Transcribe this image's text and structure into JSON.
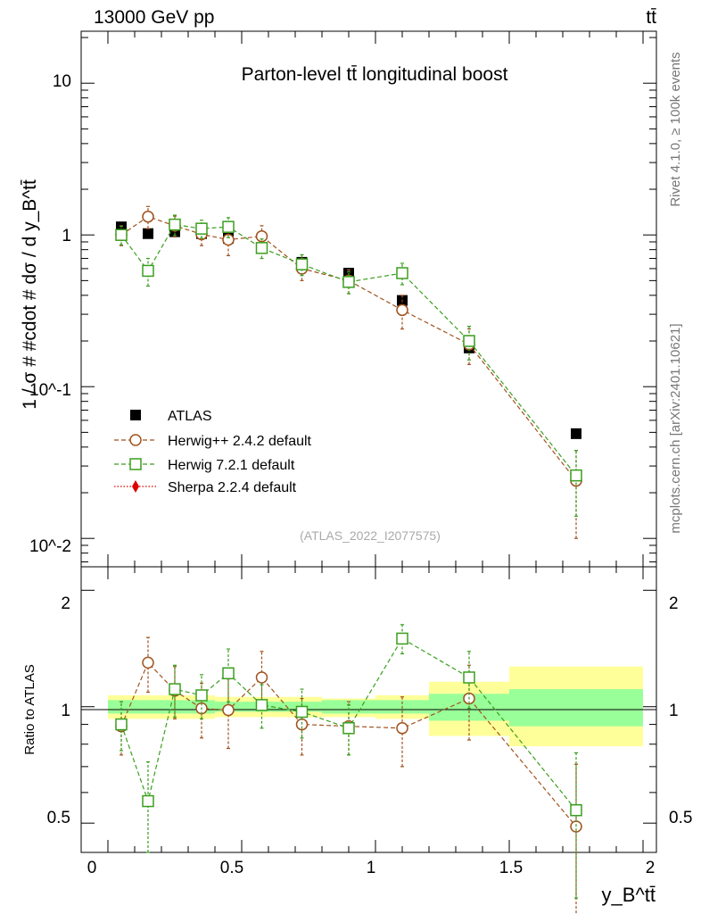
{
  "header": {
    "left": "13000 GeV pp",
    "right": "tt̄"
  },
  "side": {
    "rivet": "Rivet 4.1.0, ≥ 100k events",
    "mcplots": "mcplots.cern.ch [arXiv:2401.10621]"
  },
  "chart_data": [
    {
      "type": "scatter",
      "title": "Parton-level tt̄ longitudinal boost",
      "watermark": "(ATLAS_2022_I2077575)",
      "ylabel": "1 / σ # #cdot # dσ / d y_B^tt̄",
      "yscale": "log",
      "ylim": [
        0.0065,
        22
      ],
      "xlim": [
        -0.1,
        2.05
      ],
      "ytick_labels": [
        "10^-2",
        "10^-1",
        "1",
        "10"
      ],
      "legend_position": "lower-left",
      "series": [
        {
          "name": "ATLAS",
          "color": "#000000",
          "marker": "square-filled",
          "x": [
            0.05,
            0.15,
            0.25,
            0.35,
            0.45,
            0.575,
            0.725,
            0.9,
            1.1,
            1.35,
            1.75
          ],
          "y": [
            1.13,
            1.02,
            1.05,
            1.02,
            0.95,
            0.82,
            0.66,
            0.56,
            0.37,
            0.18,
            0.049
          ]
        },
        {
          "name": "Herwig++ 2.4.2 default",
          "color": "#a0521e",
          "marker": "circle-open",
          "x": [
            0.05,
            0.15,
            0.25,
            0.35,
            0.45,
            0.575,
            0.725,
            0.9,
            1.1,
            1.35,
            1.75
          ],
          "y": [
            1.0,
            1.32,
            1.15,
            1.01,
            0.93,
            0.98,
            0.6,
            0.5,
            0.32,
            0.19,
            0.024
          ],
          "err": [
            0.15,
            0.22,
            0.18,
            0.16,
            0.2,
            0.17,
            0.1,
            0.09,
            0.08,
            0.05,
            0.014
          ]
        },
        {
          "name": "Herwig 7.2.1 default",
          "color": "#3a9e1e",
          "marker": "square-open",
          "x": [
            0.05,
            0.15,
            0.25,
            0.35,
            0.45,
            0.575,
            0.725,
            0.9,
            1.1,
            1.35,
            1.75
          ],
          "y": [
            1.0,
            0.58,
            1.17,
            1.1,
            1.13,
            0.82,
            0.64,
            0.49,
            0.56,
            0.2,
            0.026
          ],
          "err": [
            0.14,
            0.12,
            0.18,
            0.15,
            0.17,
            0.12,
            0.1,
            0.08,
            0.09,
            0.05,
            0.012
          ]
        },
        {
          "name": "Sherpa 2.2.4 default",
          "color": "#dd0000",
          "marker": "diamond-filled",
          "x": [],
          "y": []
        }
      ]
    },
    {
      "type": "scatter",
      "ylabel": "Ratio to ATLAS",
      "xlabel": "y_B^tt̄",
      "ylim": [
        0.42,
        2.3
      ],
      "xlim": [
        -0.1,
        2.05
      ],
      "xtick_labels": [
        "0",
        "0.5",
        "1",
        "1.5",
        "2"
      ],
      "ytick_labels": [
        "0.5",
        "1",
        "2"
      ],
      "bands": {
        "edges": [
          0,
          0.1,
          0.2,
          0.3,
          0.4,
          0.5,
          0.65,
          0.8,
          1.0,
          1.2,
          1.5,
          2.0
        ],
        "yellow_lo": [
          0.93,
          0.93,
          0.93,
          0.93,
          0.94,
          0.94,
          0.94,
          0.94,
          0.93,
          0.84,
          0.79
        ],
        "yellow_hi": [
          1.07,
          1.07,
          1.07,
          1.07,
          1.06,
          1.06,
          1.06,
          1.05,
          1.07,
          1.16,
          1.27
        ],
        "green_lo": [
          0.96,
          0.96,
          0.96,
          0.96,
          0.97,
          0.97,
          0.97,
          0.96,
          0.96,
          0.92,
          0.89
        ],
        "green_hi": [
          1.04,
          1.04,
          1.04,
          1.04,
          1.03,
          1.03,
          1.03,
          1.04,
          1.04,
          1.08,
          1.11
        ]
      },
      "series": [
        {
          "name": "Herwig++ 2.4.2 default",
          "color": "#a0521e",
          "marker": "circle-open",
          "x": [
            0.05,
            0.15,
            0.25,
            0.35,
            0.45,
            0.575,
            0.725,
            0.9,
            1.1,
            1.35,
            1.75
          ],
          "y": [
            0.89,
            1.3,
            1.1,
            0.99,
            0.98,
            1.19,
            0.9,
            0.89,
            0.88,
            1.05,
            0.49
          ],
          "err": [
            0.14,
            0.21,
            0.17,
            0.16,
            0.2,
            0.2,
            0.15,
            0.14,
            0.18,
            0.23,
            0.22
          ]
        },
        {
          "name": "Herwig 7.2.1 default",
          "color": "#3a9e1e",
          "marker": "square-open",
          "x": [
            0.05,
            0.15,
            0.25,
            0.35,
            0.45,
            0.575,
            0.725,
            0.9,
            1.1,
            1.35,
            1.75
          ],
          "y": [
            0.9,
            0.57,
            1.11,
            1.07,
            1.22,
            1.01,
            0.97,
            0.88,
            1.5,
            1.19,
            0.54
          ],
          "err": [
            0.13,
            0.15,
            0.17,
            0.14,
            0.19,
            0.13,
            0.14,
            0.13,
            0.13,
            0.2,
            0.22
          ]
        }
      ]
    }
  ]
}
